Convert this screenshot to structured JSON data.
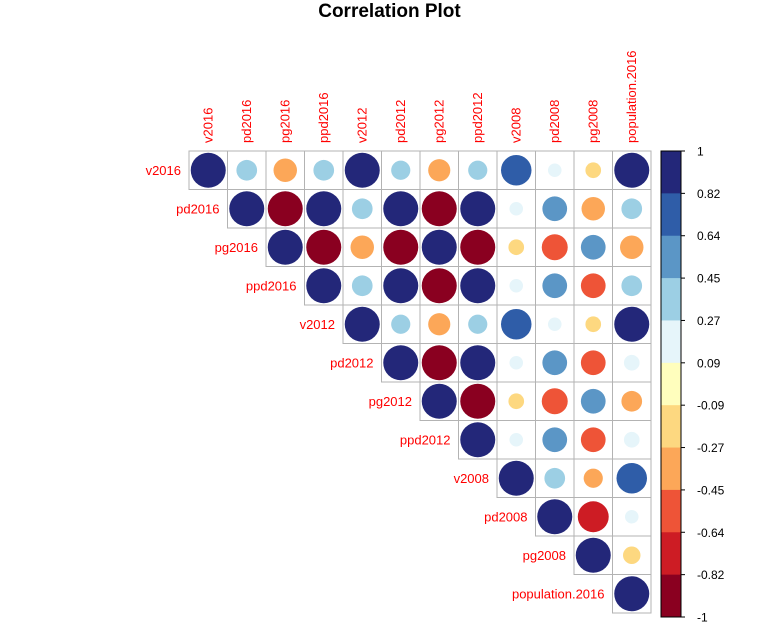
{
  "chart_data": {
    "type": "correlation-matrix",
    "title": "Correlation Plot",
    "shape": "upper-triangle",
    "marker": "circle",
    "variables": [
      "v2016",
      "pd2016",
      "pg2016",
      "ppd2016",
      "v2012",
      "pd2012",
      "pg2012",
      "ppd2012",
      "v2008",
      "pd2008",
      "pg2008",
      "population.2016"
    ],
    "matrix": [
      [
        1.0,
        0.35,
        -0.45,
        0.35,
        1.0,
        0.3,
        -0.4,
        0.3,
        0.76,
        0.15,
        -0.2,
        1.0
      ],
      [
        0.35,
        1.0,
        -1.0,
        1.0,
        0.35,
        1.0,
        -1.0,
        1.0,
        0.15,
        0.5,
        -0.45,
        0.35
      ],
      [
        -0.45,
        -1.0,
        1.0,
        -1.0,
        -0.45,
        -1.0,
        1.0,
        -1.0,
        -0.2,
        -0.55,
        0.5,
        -0.45
      ],
      [
        0.35,
        1.0,
        -1.0,
        1.0,
        0.35,
        1.0,
        -1.0,
        1.0,
        0.15,
        0.5,
        -0.5,
        0.35
      ],
      [
        1.0,
        0.35,
        -0.45,
        0.35,
        1.0,
        0.3,
        -0.4,
        0.3,
        0.76,
        0.15,
        -0.2,
        1.0
      ],
      [
        0.3,
        1.0,
        -1.0,
        1.0,
        0.3,
        1.0,
        -1.0,
        1.0,
        0.15,
        0.5,
        -0.5,
        0.2
      ],
      [
        -0.4,
        -1.0,
        1.0,
        -1.0,
        -0.4,
        -1.0,
        1.0,
        -1.0,
        -0.2,
        -0.55,
        0.5,
        -0.35
      ],
      [
        0.3,
        1.0,
        -1.0,
        1.0,
        0.3,
        1.0,
        -1.0,
        1.0,
        0.15,
        0.5,
        -0.5,
        0.2
      ],
      [
        0.76,
        0.15,
        -0.2,
        0.15,
        0.76,
        0.15,
        -0.2,
        0.15,
        1.0,
        0.35,
        -0.3,
        0.76
      ],
      [
        0.15,
        0.5,
        -0.55,
        0.5,
        0.15,
        0.5,
        -0.55,
        0.5,
        0.35,
        1.0,
        -0.78,
        0.15
      ],
      [
        -0.2,
        -0.45,
        0.5,
        -0.5,
        -0.2,
        -0.5,
        0.5,
        -0.5,
        -0.3,
        -0.78,
        1.0,
        -0.25
      ],
      [
        1.0,
        0.35,
        -0.45,
        0.35,
        1.0,
        0.2,
        -0.35,
        0.2,
        0.76,
        0.15,
        -0.25,
        1.0
      ]
    ],
    "colorbar": {
      "range": [
        -1,
        1
      ],
      "tick_labels": [
        "1",
        "0.82",
        "0.64",
        "0.45",
        "0.27",
        "0.09",
        "-0.09",
        "-0.27",
        "-0.45",
        "-0.64",
        "-0.82",
        "-1"
      ],
      "colors_top_to_bottom": [
        "#232779",
        "#2f5da8",
        "#5b96c6",
        "#9ccfe4",
        "#e6f5fa",
        "#fffebd",
        "#fdd880",
        "#fca758",
        "#ee5437",
        "#cd1c24",
        "#8a0020"
      ]
    },
    "label_color": "#ff0000",
    "grid": true,
    "legend_position": "right"
  }
}
